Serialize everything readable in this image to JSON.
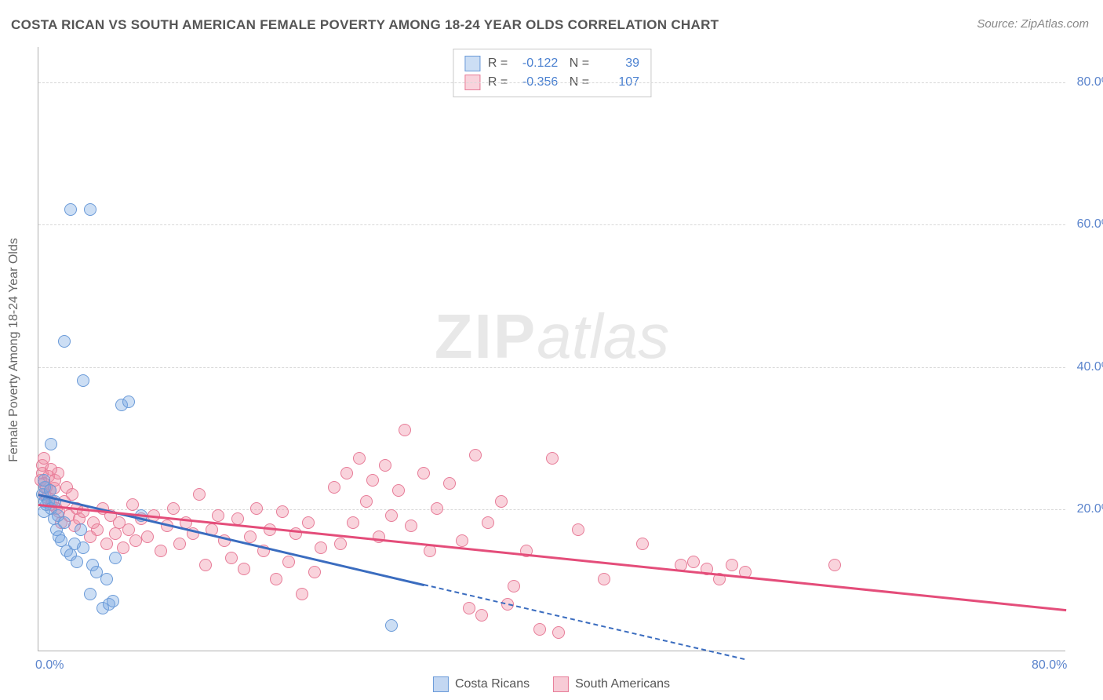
{
  "title": "COSTA RICAN VS SOUTH AMERICAN FEMALE POVERTY AMONG 18-24 YEAR OLDS CORRELATION CHART",
  "source_label": "Source:",
  "source_name": "ZipAtlas.com",
  "ylabel": "Female Poverty Among 18-24 Year Olds",
  "watermark_bold": "ZIP",
  "watermark_rest": "atlas",
  "chart": {
    "type": "scatter",
    "background_color": "#ffffff",
    "grid_color": "#d8d8d8",
    "axis_color": "#b0b0b0",
    "tick_color": "#5b84cc",
    "xlim": [
      0,
      80
    ],
    "ylim": [
      0,
      85
    ],
    "xticks": [
      {
        "v": 0,
        "label": "0.0%"
      },
      {
        "v": 80,
        "label": "80.0%"
      }
    ],
    "yticks": [
      {
        "v": 20,
        "label": "20.0%"
      },
      {
        "v": 40,
        "label": "40.0%"
      },
      {
        "v": 60,
        "label": "60.0%"
      },
      {
        "v": 80,
        "label": "80.0%"
      }
    ],
    "grid_y": [
      20,
      40,
      60,
      80
    ],
    "marker_radius": 8,
    "series": [
      {
        "name": "Costa Ricans",
        "fill": "rgba(121,167,227,0.38)",
        "stroke": "#6a9ad8",
        "trend_color": "#3a6cbf",
        "R": "-0.122",
        "N": "39",
        "trend": {
          "x1": 0,
          "y1": 22.2,
          "x2": 30,
          "y2": 9.5
        },
        "trend_dash": {
          "x1": 30,
          "y1": 9.5,
          "x2": 55,
          "y2": -1
        },
        "points": [
          [
            0.3,
            22
          ],
          [
            0.5,
            21
          ],
          [
            0.4,
            19.5
          ],
          [
            0.6,
            20.5
          ],
          [
            0.8,
            21
          ],
          [
            0.5,
            23
          ],
          [
            0.4,
            24
          ],
          [
            0.9,
            22.5
          ],
          [
            1.0,
            20
          ],
          [
            1.2,
            18.5
          ],
          [
            1.4,
            17
          ],
          [
            1.5,
            19
          ],
          [
            1.6,
            16
          ],
          [
            1.8,
            15.5
          ],
          [
            2.0,
            18
          ],
          [
            1.3,
            21
          ],
          [
            2.2,
            14
          ],
          [
            2.5,
            13.5
          ],
          [
            2.8,
            15
          ],
          [
            3.0,
            12.5
          ],
          [
            3.3,
            17
          ],
          [
            3.5,
            14.5
          ],
          [
            4.0,
            8
          ],
          [
            4.2,
            12
          ],
          [
            4.5,
            11
          ],
          [
            5.0,
            6
          ],
          [
            5.5,
            6.5
          ],
          [
            5.3,
            10
          ],
          [
            5.8,
            7
          ],
          [
            6.0,
            13
          ],
          [
            1.0,
            29
          ],
          [
            2.5,
            62
          ],
          [
            4.0,
            62
          ],
          [
            2.0,
            43.5
          ],
          [
            3.5,
            38
          ],
          [
            6.5,
            34.5
          ],
          [
            7.0,
            35
          ],
          [
            27.5,
            3.5
          ],
          [
            8.0,
            19
          ]
        ]
      },
      {
        "name": "South Americans",
        "fill": "rgba(238,140,164,0.38)",
        "stroke": "#e77c98",
        "trend_color": "#e44d7a",
        "R": "-0.356",
        "N": "107",
        "trend": {
          "x1": 0,
          "y1": 20.8,
          "x2": 80,
          "y2": 6.0
        },
        "points": [
          [
            0.2,
            24
          ],
          [
            0.3,
            25
          ],
          [
            0.4,
            23.5
          ],
          [
            0.5,
            22
          ],
          [
            0.6,
            23
          ],
          [
            0.7,
            21.5
          ],
          [
            0.8,
            24.5
          ],
          [
            0.9,
            22.5
          ],
          [
            1.0,
            20.5
          ],
          [
            1.1,
            21
          ],
          [
            1.2,
            22.8
          ],
          [
            1.3,
            24
          ],
          [
            1.4,
            20
          ],
          [
            1.5,
            25
          ],
          [
            1.6,
            19.5
          ],
          [
            1.8,
            18
          ],
          [
            2.0,
            21
          ],
          [
            2.2,
            23
          ],
          [
            2.4,
            19
          ],
          [
            2.6,
            22
          ],
          [
            2.8,
            17.5
          ],
          [
            3.0,
            20
          ],
          [
            3.2,
            18.5
          ],
          [
            3.5,
            19.5
          ],
          [
            4.0,
            16
          ],
          [
            4.3,
            18
          ],
          [
            4.6,
            17
          ],
          [
            5.0,
            20
          ],
          [
            5.3,
            15
          ],
          [
            5.6,
            19
          ],
          [
            6.0,
            16.5
          ],
          [
            6.3,
            18
          ],
          [
            6.6,
            14.5
          ],
          [
            7.0,
            17
          ],
          [
            7.3,
            20.5
          ],
          [
            7.6,
            15.5
          ],
          [
            8.0,
            18.5
          ],
          [
            8.5,
            16
          ],
          [
            9.0,
            19
          ],
          [
            9.5,
            14
          ],
          [
            10.0,
            17.5
          ],
          [
            10.5,
            20
          ],
          [
            11.0,
            15
          ],
          [
            11.5,
            18
          ],
          [
            12.0,
            16.5
          ],
          [
            12.5,
            22
          ],
          [
            13.0,
            12
          ],
          [
            13.5,
            17
          ],
          [
            14.0,
            19
          ],
          [
            14.5,
            15.5
          ],
          [
            15.0,
            13
          ],
          [
            15.5,
            18.5
          ],
          [
            16.0,
            11.5
          ],
          [
            16.5,
            16
          ],
          [
            17.0,
            20
          ],
          [
            17.5,
            14
          ],
          [
            18.0,
            17
          ],
          [
            18.5,
            10
          ],
          [
            19.0,
            19.5
          ],
          [
            19.5,
            12.5
          ],
          [
            20.0,
            16.5
          ],
          [
            20.5,
            8
          ],
          [
            21.0,
            18
          ],
          [
            21.5,
            11
          ],
          [
            22.0,
            14.5
          ],
          [
            23.0,
            23
          ],
          [
            23.5,
            15
          ],
          [
            24.0,
            25
          ],
          [
            24.5,
            18
          ],
          [
            25.0,
            27
          ],
          [
            25.5,
            21
          ],
          [
            26.0,
            24
          ],
          [
            26.5,
            16
          ],
          [
            27.0,
            26
          ],
          [
            27.5,
            19
          ],
          [
            28.0,
            22.5
          ],
          [
            28.5,
            31
          ],
          [
            29.0,
            17.5
          ],
          [
            30.0,
            25
          ],
          [
            30.5,
            14
          ],
          [
            31.0,
            20
          ],
          [
            32.0,
            23.5
          ],
          [
            33.0,
            15.5
          ],
          [
            33.5,
            6
          ],
          [
            34.0,
            27.5
          ],
          [
            34.5,
            5
          ],
          [
            35.0,
            18
          ],
          [
            36.0,
            21
          ],
          [
            36.5,
            6.5
          ],
          [
            37.0,
            9
          ],
          [
            38.0,
            14
          ],
          [
            39.0,
            3
          ],
          [
            40.0,
            27
          ],
          [
            40.5,
            2.5
          ],
          [
            42.0,
            17
          ],
          [
            44.0,
            10
          ],
          [
            47.0,
            15
          ],
          [
            50.0,
            12
          ],
          [
            51.0,
            12.5
          ],
          [
            52.0,
            11.5
          ],
          [
            53.0,
            10
          ],
          [
            54.0,
            12
          ],
          [
            55.0,
            11
          ],
          [
            62.0,
            12
          ],
          [
            0.3,
            26
          ],
          [
            0.4,
            27
          ],
          [
            1.0,
            25.5
          ]
        ]
      }
    ]
  },
  "legend_bottom": [
    {
      "swatch_fill": "rgba(121,167,227,0.45)",
      "swatch_border": "#6a9ad8",
      "label": "Costa Ricans"
    },
    {
      "swatch_fill": "rgba(238,140,164,0.45)",
      "swatch_border": "#e77c98",
      "label": "South Americans"
    }
  ]
}
